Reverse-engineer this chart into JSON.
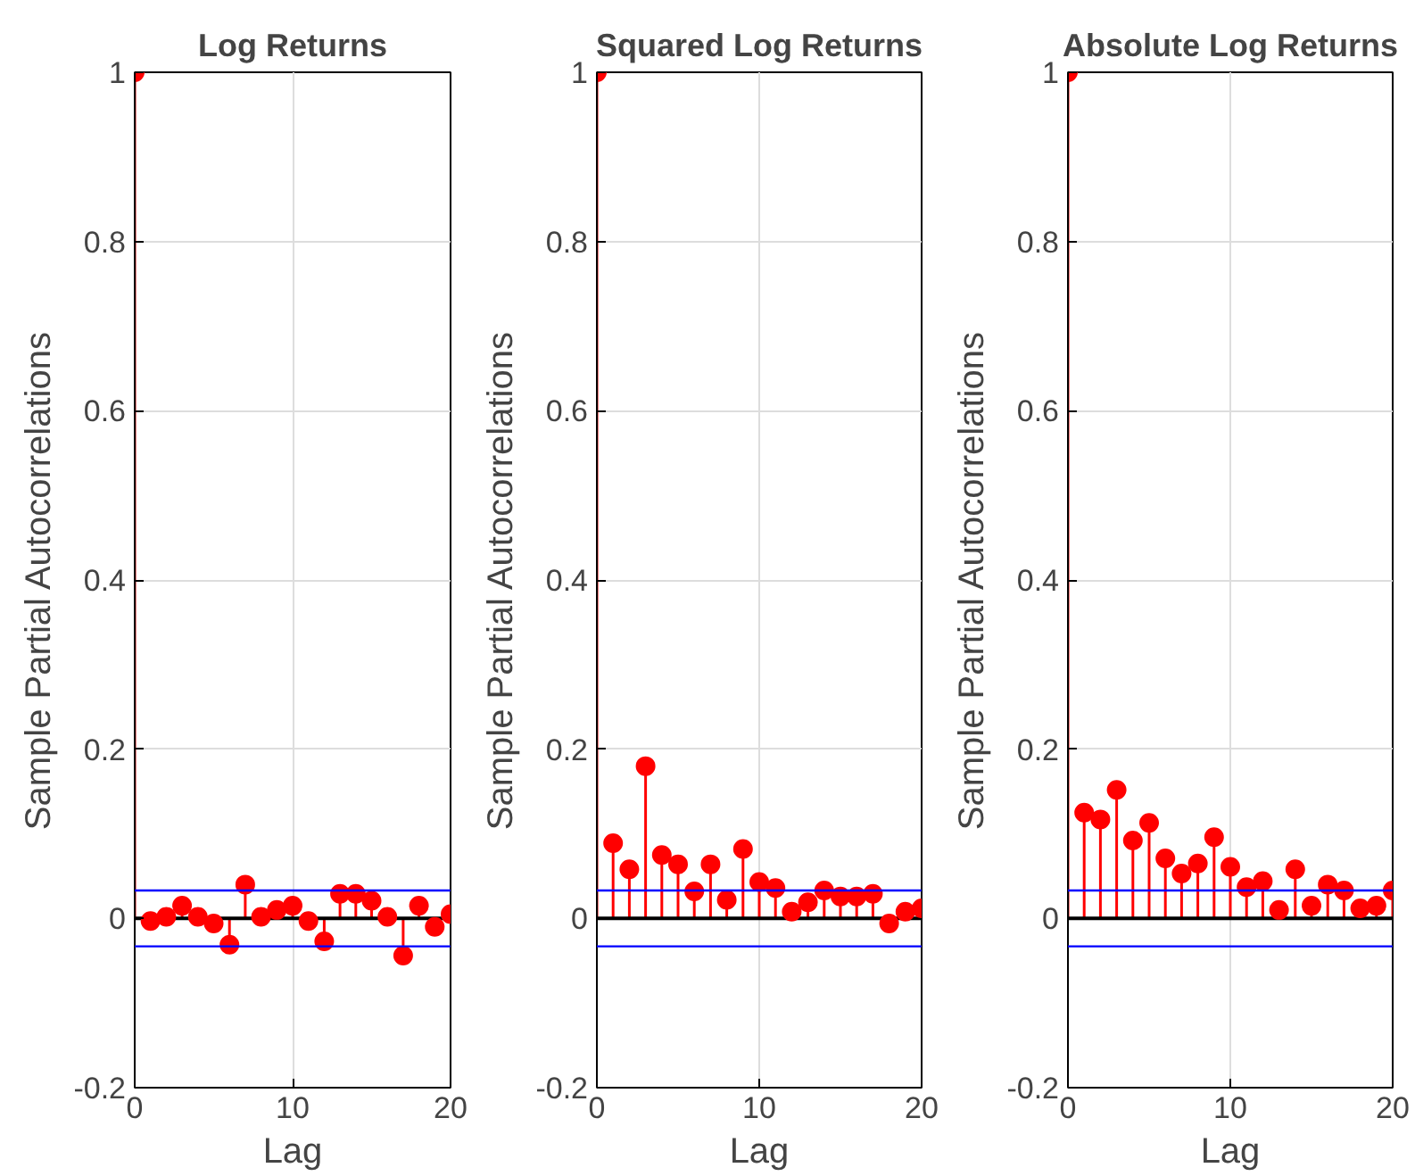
{
  "chart_data": [
    {
      "type": "lollipop",
      "title": "Log Returns",
      "xlabel": "Lag",
      "ylabel": "Sample Partial Autocorrelations",
      "x": [
        0,
        1,
        2,
        3,
        4,
        5,
        6,
        7,
        8,
        9,
        10,
        11,
        12,
        13,
        14,
        15,
        16,
        17,
        18,
        19,
        20
      ],
      "values": [
        1,
        -0.003,
        0.002,
        0.015,
        0.002,
        -0.006,
        -0.031,
        0.04,
        0.002,
        0.01,
        0.015,
        -0.003,
        -0.027,
        0.029,
        0.029,
        0.021,
        0.002,
        -0.044,
        0.015,
        -0.01,
        0.005
      ],
      "color": "#ff0000",
      "marker": "circle",
      "xlim": [
        0,
        20
      ],
      "ylim": [
        -0.2,
        1
      ],
      "xticks": [
        0,
        10,
        20
      ],
      "yticks": [
        -0.2,
        0,
        0.2,
        0.4,
        0.6,
        0.8,
        1
      ],
      "grid": true,
      "ref_lines": [
        {
          "axis": "y",
          "value": 0.033,
          "color": "#0000ff"
        },
        {
          "axis": "y",
          "value": -0.033,
          "color": "#0000ff"
        }
      ]
    },
    {
      "type": "lollipop",
      "title": "Squared Log Returns",
      "xlabel": "Lag",
      "ylabel": "Sample Partial Autocorrelations",
      "x": [
        0,
        1,
        2,
        3,
        4,
        5,
        6,
        7,
        8,
        9,
        10,
        11,
        12,
        13,
        14,
        15,
        16,
        17,
        18,
        19,
        20
      ],
      "values": [
        1,
        0.089,
        0.058,
        0.18,
        0.075,
        0.064,
        0.032,
        0.064,
        0.022,
        0.082,
        0.043,
        0.036,
        0.008,
        0.019,
        0.033,
        0.026,
        0.026,
        0.029,
        -0.006,
        0.008,
        0.012
      ],
      "color": "#ff0000",
      "marker": "circle",
      "xlim": [
        0,
        20
      ],
      "ylim": [
        -0.2,
        1
      ],
      "xticks": [
        0,
        10,
        20
      ],
      "yticks": [
        -0.2,
        0,
        0.2,
        0.4,
        0.6,
        0.8,
        1
      ],
      "grid": true,
      "ref_lines": [
        {
          "axis": "y",
          "value": 0.033,
          "color": "#0000ff"
        },
        {
          "axis": "y",
          "value": -0.033,
          "color": "#0000ff"
        }
      ]
    },
    {
      "type": "lollipop",
      "title": "Absolute Log Returns",
      "xlabel": "Lag",
      "ylabel": "Sample Partial Autocorrelations",
      "x": [
        0,
        1,
        2,
        3,
        4,
        5,
        6,
        7,
        8,
        9,
        10,
        11,
        12,
        13,
        14,
        15,
        16,
        17,
        18,
        19,
        20
      ],
      "values": [
        1,
        0.125,
        0.117,
        0.152,
        0.092,
        0.113,
        0.071,
        0.053,
        0.065,
        0.096,
        0.061,
        0.037,
        0.044,
        0.01,
        0.058,
        0.015,
        0.04,
        0.033,
        0.012,
        0.015,
        0.033
      ],
      "color": "#ff0000",
      "marker": "circle",
      "xlim": [
        0,
        20
      ],
      "ylim": [
        -0.2,
        1
      ],
      "xticks": [
        0,
        10,
        20
      ],
      "yticks": [
        -0.2,
        0,
        0.2,
        0.4,
        0.6,
        0.8,
        1
      ],
      "grid": true,
      "ref_lines": [
        {
          "axis": "y",
          "value": 0.033,
          "color": "#0000ff"
        },
        {
          "axis": "y",
          "value": -0.033,
          "color": "#0000ff"
        }
      ]
    }
  ]
}
